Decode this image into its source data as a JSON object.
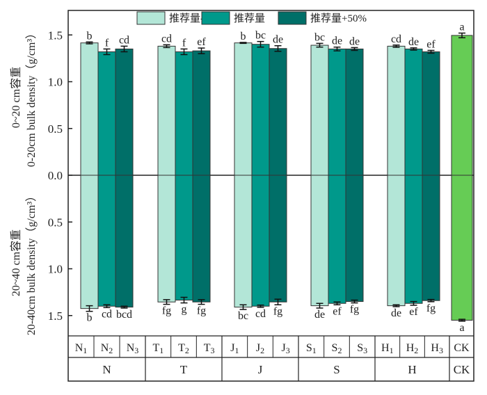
{
  "chart_data": {
    "type": "bar",
    "title": "",
    "ylabel_top": [
      "0~20 cm容重",
      "0-20cm bulk density（g/cm³）"
    ],
    "ylabel_bottom": [
      "20~40 cm容重",
      "20-40cm bulk density（g/cm³）"
    ],
    "ylim": [
      0,
      1.65
    ],
    "yticks_top": [
      "1.5",
      "1.0",
      "0.5",
      "0.0"
    ],
    "yticks_bottom": [
      "0.5",
      "1.0",
      "1.5"
    ],
    "legend": {
      "placement": "top-center",
      "entries": [
        "推荐量-50%",
        "推荐量",
        "推荐量+50%"
      ]
    },
    "colors": {
      "low": "#b3e6d7",
      "mid": "#00998b",
      "high": "#006f68",
      "ck": "#66cc55"
    },
    "groups": [
      {
        "name": "N",
        "bars": [
          {
            "label": "N1",
            "sub": "1",
            "letter": "N",
            "series": "low",
            "top": 1.415,
            "top_err": 0.01,
            "top_sig": "b",
            "bottom": 1.425,
            "bottom_err": 0.03,
            "bottom_sig": "b"
          },
          {
            "label": "N2",
            "sub": "2",
            "letter": "N",
            "series": "mid",
            "top": 1.32,
            "top_err": 0.03,
            "top_sig": "f",
            "bottom": 1.4,
            "bottom_err": 0.015,
            "bottom_sig": "cd"
          },
          {
            "label": "N3",
            "sub": "3",
            "letter": "N",
            "series": "high",
            "top": 1.35,
            "top_err": 0.03,
            "top_sig": "cd",
            "bottom": 1.41,
            "bottom_err": 0.01,
            "bottom_sig": "bcd"
          }
        ]
      },
      {
        "name": "T",
        "bars": [
          {
            "label": "T1",
            "sub": "1",
            "letter": "T",
            "series": "low",
            "top": 1.38,
            "top_err": 0.015,
            "top_sig": "cd",
            "bottom": 1.355,
            "bottom_err": 0.025,
            "bottom_sig": "fg"
          },
          {
            "label": "T2",
            "sub": "2",
            "letter": "T",
            "series": "mid",
            "top": 1.32,
            "top_err": 0.03,
            "top_sig": "f",
            "bottom": 1.335,
            "bottom_err": 0.03,
            "bottom_sig": "g"
          },
          {
            "label": "T3",
            "sub": "3",
            "letter": "T",
            "series": "high",
            "top": 1.33,
            "top_err": 0.03,
            "top_sig": "ef",
            "bottom": 1.355,
            "bottom_err": 0.025,
            "bottom_sig": "fg"
          }
        ]
      },
      {
        "name": "J",
        "bars": [
          {
            "label": "J1",
            "sub": "1",
            "letter": "J",
            "series": "low",
            "top": 1.415,
            "top_err": 0.005,
            "top_sig": "b",
            "bottom": 1.41,
            "bottom_err": 0.025,
            "bottom_sig": "bc"
          },
          {
            "label": "J2",
            "sub": "2",
            "letter": "J",
            "series": "mid",
            "top": 1.4,
            "top_err": 0.03,
            "top_sig": "bc",
            "bottom": 1.4,
            "bottom_err": 0.012,
            "bottom_sig": "cd"
          },
          {
            "label": "J3",
            "sub": "3",
            "letter": "J",
            "series": "high",
            "top": 1.355,
            "top_err": 0.03,
            "top_sig": "de",
            "bottom": 1.355,
            "bottom_err": 0.03,
            "bottom_sig": "fg"
          }
        ]
      },
      {
        "name": "S",
        "bars": [
          {
            "label": "S1",
            "sub": "1",
            "letter": "S",
            "series": "low",
            "top": 1.39,
            "top_err": 0.02,
            "top_sig": "bc",
            "bottom": 1.395,
            "bottom_err": 0.025,
            "bottom_sig": "de"
          },
          {
            "label": "S2",
            "sub": "2",
            "letter": "S",
            "series": "mid",
            "top": 1.35,
            "top_err": 0.02,
            "top_sig": "de",
            "bottom": 1.37,
            "bottom_err": 0.015,
            "bottom_sig": "ef"
          },
          {
            "label": "S3",
            "sub": "3",
            "letter": "S",
            "series": "high",
            "top": 1.35,
            "top_err": 0.015,
            "top_sig": "de",
            "bottom": 1.35,
            "bottom_err": 0.015,
            "bottom_sig": "fg"
          }
        ]
      },
      {
        "name": "H",
        "bars": [
          {
            "label": "H1",
            "sub": "1",
            "letter": "H",
            "series": "low",
            "top": 1.38,
            "top_err": 0.012,
            "top_sig": "cd",
            "bottom": 1.395,
            "bottom_err": 0.01,
            "bottom_sig": "de"
          },
          {
            "label": "H2",
            "sub": "2",
            "letter": "H",
            "series": "mid",
            "top": 1.35,
            "top_err": 0.012,
            "top_sig": "de",
            "bottom": 1.37,
            "bottom_err": 0.02,
            "bottom_sig": "ef"
          },
          {
            "label": "H3",
            "sub": "3",
            "letter": "H",
            "series": "high",
            "top": 1.32,
            "top_err": 0.015,
            "top_sig": "ef",
            "bottom": 1.34,
            "bottom_err": 0.012,
            "bottom_sig": "fg"
          }
        ]
      },
      {
        "name": "CK",
        "bars": [
          {
            "label": "CK",
            "sub": "",
            "letter": "CK",
            "series": "ck",
            "top": 1.495,
            "top_err": 0.025,
            "top_sig": "a",
            "bottom": 1.55,
            "bottom_err": 0.01,
            "bottom_sig": "a"
          }
        ]
      }
    ]
  }
}
